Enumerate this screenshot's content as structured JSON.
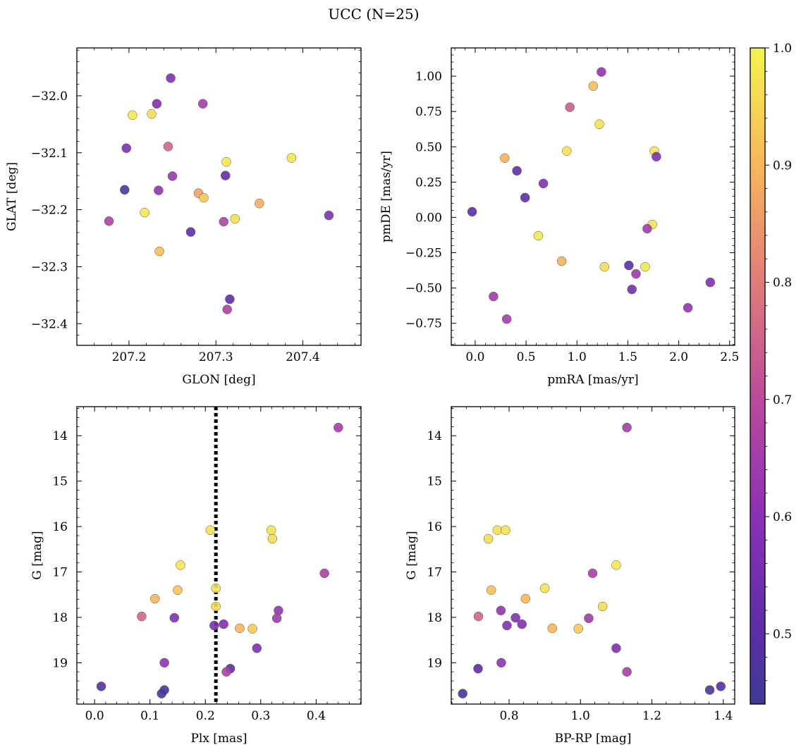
{
  "figure": {
    "title": "UCC (N=25)"
  },
  "colorbar": {
    "colormap": "plasma",
    "range": [
      0.44,
      1.0
    ],
    "ticks": [
      0.5,
      0.6,
      0.7,
      0.8,
      0.9,
      1.0
    ],
    "tick_labels": [
      "0.5",
      "0.6",
      "0.7",
      "0.8",
      "0.9",
      "1.0"
    ]
  },
  "chart_data": [
    {
      "id": "panel-glon-glat",
      "type": "scatter",
      "xlabel": "GLON [deg]",
      "ylabel": "GLAT [deg]",
      "xlim": [
        207.14,
        207.467
      ],
      "ylim": [
        -32.438,
        -31.916
      ],
      "xticks": [
        207.2,
        207.3,
        207.4
      ],
      "xtick_labels": [
        "207.2",
        "207.3",
        "207.4"
      ],
      "yticks": [
        -32.0,
        -32.1,
        -32.2,
        -32.3,
        -32.4
      ],
      "ytick_labels": [
        "−32.0",
        "−32.1",
        "−32.2",
        "−32.3",
        "−32.4"
      ],
      "points": [
        {
          "x": 207.248,
          "y": -31.969,
          "c": 0.57
        },
        {
          "x": 207.232,
          "y": -32.014,
          "c": 0.58
        },
        {
          "x": 207.285,
          "y": -32.014,
          "c": 0.65
        },
        {
          "x": 207.204,
          "y": -32.034,
          "c": 0.98
        },
        {
          "x": 207.226,
          "y": -32.032,
          "c": 0.96
        },
        {
          "x": 207.197,
          "y": -32.092,
          "c": 0.57
        },
        {
          "x": 207.245,
          "y": -32.089,
          "c": 0.76
        },
        {
          "x": 207.312,
          "y": -32.116,
          "c": 0.98
        },
        {
          "x": 207.387,
          "y": -32.109,
          "c": 0.98
        },
        {
          "x": 207.25,
          "y": -32.141,
          "c": 0.63
        },
        {
          "x": 207.311,
          "y": -32.14,
          "c": 0.52
        },
        {
          "x": 207.195,
          "y": -32.165,
          "c": 0.46
        },
        {
          "x": 207.234,
          "y": -32.166,
          "c": 0.61
        },
        {
          "x": 207.28,
          "y": -32.171,
          "c": 0.87
        },
        {
          "x": 207.286,
          "y": -32.179,
          "c": 0.93
        },
        {
          "x": 207.35,
          "y": -32.189,
          "c": 0.89
        },
        {
          "x": 207.218,
          "y": -32.205,
          "c": 0.98
        },
        {
          "x": 207.43,
          "y": -32.21,
          "c": 0.58
        },
        {
          "x": 207.177,
          "y": -32.22,
          "c": 0.67
        },
        {
          "x": 207.309,
          "y": -32.221,
          "c": 0.67
        },
        {
          "x": 207.322,
          "y": -32.216,
          "c": 0.97
        },
        {
          "x": 207.271,
          "y": -32.239,
          "c": 0.51
        },
        {
          "x": 207.235,
          "y": -32.273,
          "c": 0.91
        },
        {
          "x": 207.316,
          "y": -32.357,
          "c": 0.5
        },
        {
          "x": 207.313,
          "y": -32.375,
          "c": 0.66
        }
      ]
    },
    {
      "id": "panel-pmra-pmde",
      "type": "scatter",
      "xlabel": "pmRA [mas/yr]",
      "ylabel": "pmDE [mas/yr]",
      "xlim": [
        -0.235,
        2.55
      ],
      "ylim": [
        -0.906,
        1.2
      ],
      "xticks": [
        0.0,
        0.5,
        1.0,
        1.5,
        2.0,
        2.5
      ],
      "xtick_labels": [
        "0.0",
        "0.5",
        "1.0",
        "1.5",
        "2.0",
        "2.5"
      ],
      "yticks": [
        1.0,
        0.75,
        0.5,
        0.25,
        0.0,
        -0.25,
        -0.5,
        -0.75
      ],
      "ytick_labels": [
        "1.00",
        "0.75",
        "0.50",
        "0.25",
        "0.00",
        "−0.25",
        "−0.50",
        "−0.75"
      ],
      "points": [
        {
          "x": 1.24,
          "y": 1.03,
          "c": 0.62
        },
        {
          "x": 1.16,
          "y": 0.93,
          "c": 0.91
        },
        {
          "x": 0.93,
          "y": 0.78,
          "c": 0.74
        },
        {
          "x": 1.22,
          "y": 0.66,
          "c": 0.97
        },
        {
          "x": 0.9,
          "y": 0.47,
          "c": 0.97
        },
        {
          "x": 1.76,
          "y": 0.47,
          "c": 0.98
        },
        {
          "x": 1.78,
          "y": 0.43,
          "c": 0.57
        },
        {
          "x": 0.29,
          "y": 0.42,
          "c": 0.89
        },
        {
          "x": 0.41,
          "y": 0.33,
          "c": 0.51
        },
        {
          "x": 0.67,
          "y": 0.24,
          "c": 0.58
        },
        {
          "x": 0.49,
          "y": 0.14,
          "c": 0.51
        },
        {
          "x": -0.03,
          "y": 0.04,
          "c": 0.5
        },
        {
          "x": 1.74,
          "y": -0.05,
          "c": 0.98
        },
        {
          "x": 1.69,
          "y": -0.08,
          "c": 0.65
        },
        {
          "x": 0.62,
          "y": -0.13,
          "c": 0.98
        },
        {
          "x": 0.85,
          "y": -0.31,
          "c": 0.89
        },
        {
          "x": 1.51,
          "y": -0.34,
          "c": 0.5
        },
        {
          "x": 1.27,
          "y": -0.35,
          "c": 0.96
        },
        {
          "x": 1.67,
          "y": -0.35,
          "c": 0.98
        },
        {
          "x": 1.58,
          "y": -0.4,
          "c": 0.64
        },
        {
          "x": 2.31,
          "y": -0.46,
          "c": 0.58
        },
        {
          "x": 1.54,
          "y": -0.51,
          "c": 0.55
        },
        {
          "x": 0.18,
          "y": -0.56,
          "c": 0.64
        },
        {
          "x": 2.09,
          "y": -0.64,
          "c": 0.62
        },
        {
          "x": 0.31,
          "y": -0.72,
          "c": 0.65
        }
      ]
    },
    {
      "id": "panel-plx-g",
      "type": "scatter",
      "xlabel": "Plx [mas]",
      "ylabel": "G [mag]",
      "xlim": [
        -0.032,
        0.481
      ],
      "ylim": [
        19.91,
        13.36
      ],
      "reference_line": {
        "x": 0.219,
        "style": "dotted",
        "color": "#000000"
      },
      "xticks": [
        0.0,
        0.1,
        0.2,
        0.3,
        0.4
      ],
      "xtick_labels": [
        "0.0",
        "0.1",
        "0.2",
        "0.3",
        "0.4"
      ],
      "yticks": [
        14,
        15,
        16,
        17,
        18,
        19
      ],
      "ytick_labels": [
        "14",
        "15",
        "16",
        "17",
        "18",
        "19"
      ],
      "points": [
        {
          "x": 0.44,
          "y": 13.82,
          "c": 0.65
        },
        {
          "x": 0.209,
          "y": 16.08,
          "c": 0.97
        },
        {
          "x": 0.319,
          "y": 16.08,
          "c": 0.97
        },
        {
          "x": 0.321,
          "y": 16.27,
          "c": 0.96
        },
        {
          "x": 0.155,
          "y": 16.85,
          "c": 0.98
        },
        {
          "x": 0.415,
          "y": 17.03,
          "c": 0.66
        },
        {
          "x": 0.219,
          "y": 17.36,
          "c": 0.97
        },
        {
          "x": 0.15,
          "y": 17.4,
          "c": 0.92
        },
        {
          "x": 0.109,
          "y": 17.59,
          "c": 0.9
        },
        {
          "x": 0.219,
          "y": 17.76,
          "c": 0.96
        },
        {
          "x": 0.332,
          "y": 17.85,
          "c": 0.62
        },
        {
          "x": 0.085,
          "y": 17.98,
          "c": 0.76
        },
        {
          "x": 0.144,
          "y": 18.01,
          "c": 0.58
        },
        {
          "x": 0.329,
          "y": 18.02,
          "c": 0.64
        },
        {
          "x": 0.216,
          "y": 18.18,
          "c": 0.58
        },
        {
          "x": 0.233,
          "y": 18.15,
          "c": 0.58
        },
        {
          "x": 0.262,
          "y": 18.24,
          "c": 0.9
        },
        {
          "x": 0.285,
          "y": 18.25,
          "c": 0.93
        },
        {
          "x": 0.293,
          "y": 18.68,
          "c": 0.58
        },
        {
          "x": 0.126,
          "y": 19.0,
          "c": 0.61
        },
        {
          "x": 0.245,
          "y": 19.13,
          "c": 0.5
        },
        {
          "x": 0.238,
          "y": 19.2,
          "c": 0.66
        },
        {
          "x": 0.012,
          "y": 19.52,
          "c": 0.49
        },
        {
          "x": 0.126,
          "y": 19.6,
          "c": 0.46
        },
        {
          "x": 0.121,
          "y": 19.68,
          "c": 0.46
        }
      ]
    },
    {
      "id": "panel-bprp-g",
      "type": "scatter",
      "xlabel": "BP-RP [mag]",
      "ylabel": "G [mag]",
      "xlim": [
        0.638,
        1.432
      ],
      "ylim": [
        19.91,
        13.36
      ],
      "xticks": [
        0.8,
        1.0,
        1.2,
        1.4
      ],
      "xtick_labels": [
        "0.8",
        "1.0",
        "1.2",
        "1.4"
      ],
      "yticks": [
        14,
        15,
        16,
        17,
        18,
        19
      ],
      "ytick_labels": [
        "14",
        "15",
        "16",
        "17",
        "18",
        "19"
      ],
      "points": [
        {
          "x": 1.13,
          "y": 13.82,
          "c": 0.65
        },
        {
          "x": 0.767,
          "y": 16.08,
          "c": 0.97
        },
        {
          "x": 0.79,
          "y": 16.08,
          "c": 0.97
        },
        {
          "x": 0.742,
          "y": 16.27,
          "c": 0.96
        },
        {
          "x": 1.1,
          "y": 16.85,
          "c": 0.98
        },
        {
          "x": 1.034,
          "y": 17.03,
          "c": 0.66
        },
        {
          "x": 0.9,
          "y": 17.36,
          "c": 0.97
        },
        {
          "x": 0.75,
          "y": 17.4,
          "c": 0.92
        },
        {
          "x": 0.846,
          "y": 17.59,
          "c": 0.9
        },
        {
          "x": 1.062,
          "y": 17.76,
          "c": 0.96
        },
        {
          "x": 0.777,
          "y": 17.85,
          "c": 0.62
        },
        {
          "x": 0.714,
          "y": 17.98,
          "c": 0.76
        },
        {
          "x": 0.818,
          "y": 18.01,
          "c": 0.58
        },
        {
          "x": 1.023,
          "y": 18.02,
          "c": 0.64
        },
        {
          "x": 0.794,
          "y": 18.18,
          "c": 0.58
        },
        {
          "x": 0.836,
          "y": 18.15,
          "c": 0.58
        },
        {
          "x": 0.921,
          "y": 18.24,
          "c": 0.9
        },
        {
          "x": 0.994,
          "y": 18.25,
          "c": 0.93
        },
        {
          "x": 1.1,
          "y": 18.68,
          "c": 0.58
        },
        {
          "x": 0.778,
          "y": 19.0,
          "c": 0.61
        },
        {
          "x": 0.713,
          "y": 19.13,
          "c": 0.5
        },
        {
          "x": 1.13,
          "y": 19.2,
          "c": 0.66
        },
        {
          "x": 1.393,
          "y": 19.52,
          "c": 0.49
        },
        {
          "x": 1.362,
          "y": 19.6,
          "c": 0.46
        },
        {
          "x": 0.67,
          "y": 19.68,
          "c": 0.46
        }
      ]
    }
  ]
}
